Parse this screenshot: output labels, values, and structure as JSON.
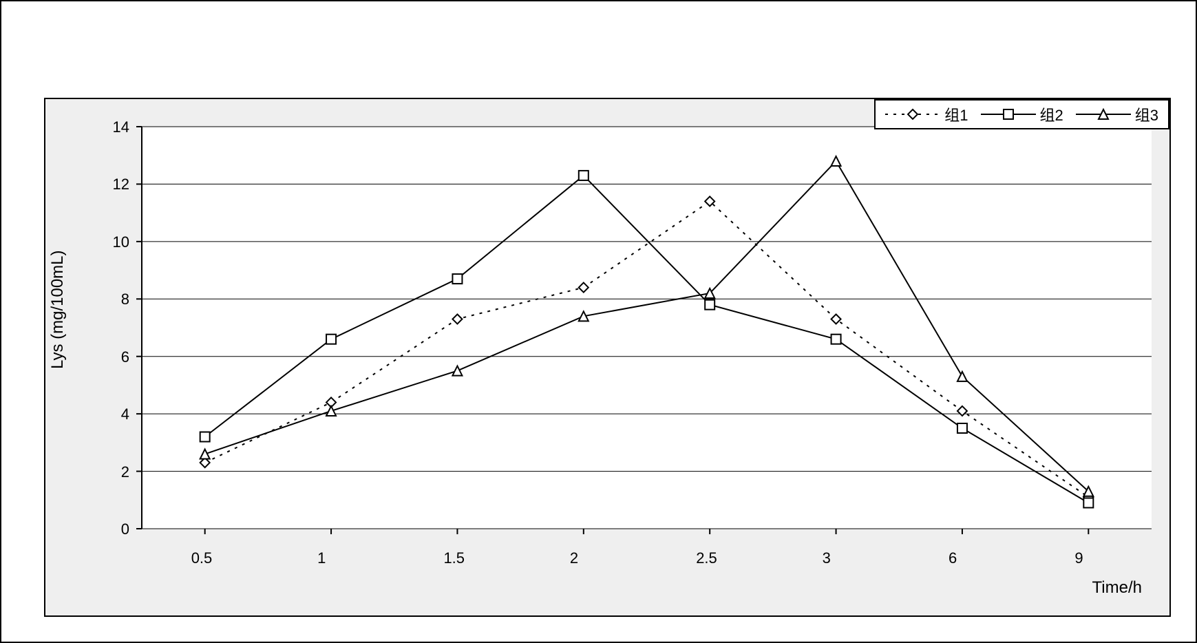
{
  "chart": {
    "type": "line",
    "ylabel": "Lys (mg/100mL)",
    "xlabel": "Time/h",
    "ylim": [
      0,
      14
    ],
    "ytick_step": 2,
    "yticks": [
      0,
      2,
      4,
      6,
      8,
      10,
      12,
      14
    ],
    "x_categories": [
      "0.5",
      "1",
      "1.5",
      "2",
      "2.5",
      "3",
      "6",
      "9"
    ],
    "label_fontsize": 24,
    "tick_fontsize": 22,
    "background_color": "#efefef",
    "plot_background_color": "#ffffff",
    "grid_color": "#000000",
    "line_color": "#000000",
    "line_width": 2,
    "marker_size": 14,
    "series": [
      {
        "name": "组1",
        "marker": "diamond",
        "dash": "dotted",
        "values": [
          2.3,
          4.4,
          7.3,
          8.4,
          11.4,
          7.3,
          4.1,
          1.1
        ]
      },
      {
        "name": "组2",
        "marker": "square",
        "dash": "solid",
        "values": [
          3.2,
          6.6,
          8.7,
          12.3,
          7.8,
          6.6,
          3.5,
          0.9
        ]
      },
      {
        "name": "组3",
        "marker": "triangle",
        "dash": "solid",
        "values": [
          2.6,
          4.1,
          5.5,
          7.4,
          8.2,
          12.8,
          5.3,
          1.3
        ]
      }
    ],
    "legend_position": "top-right"
  }
}
